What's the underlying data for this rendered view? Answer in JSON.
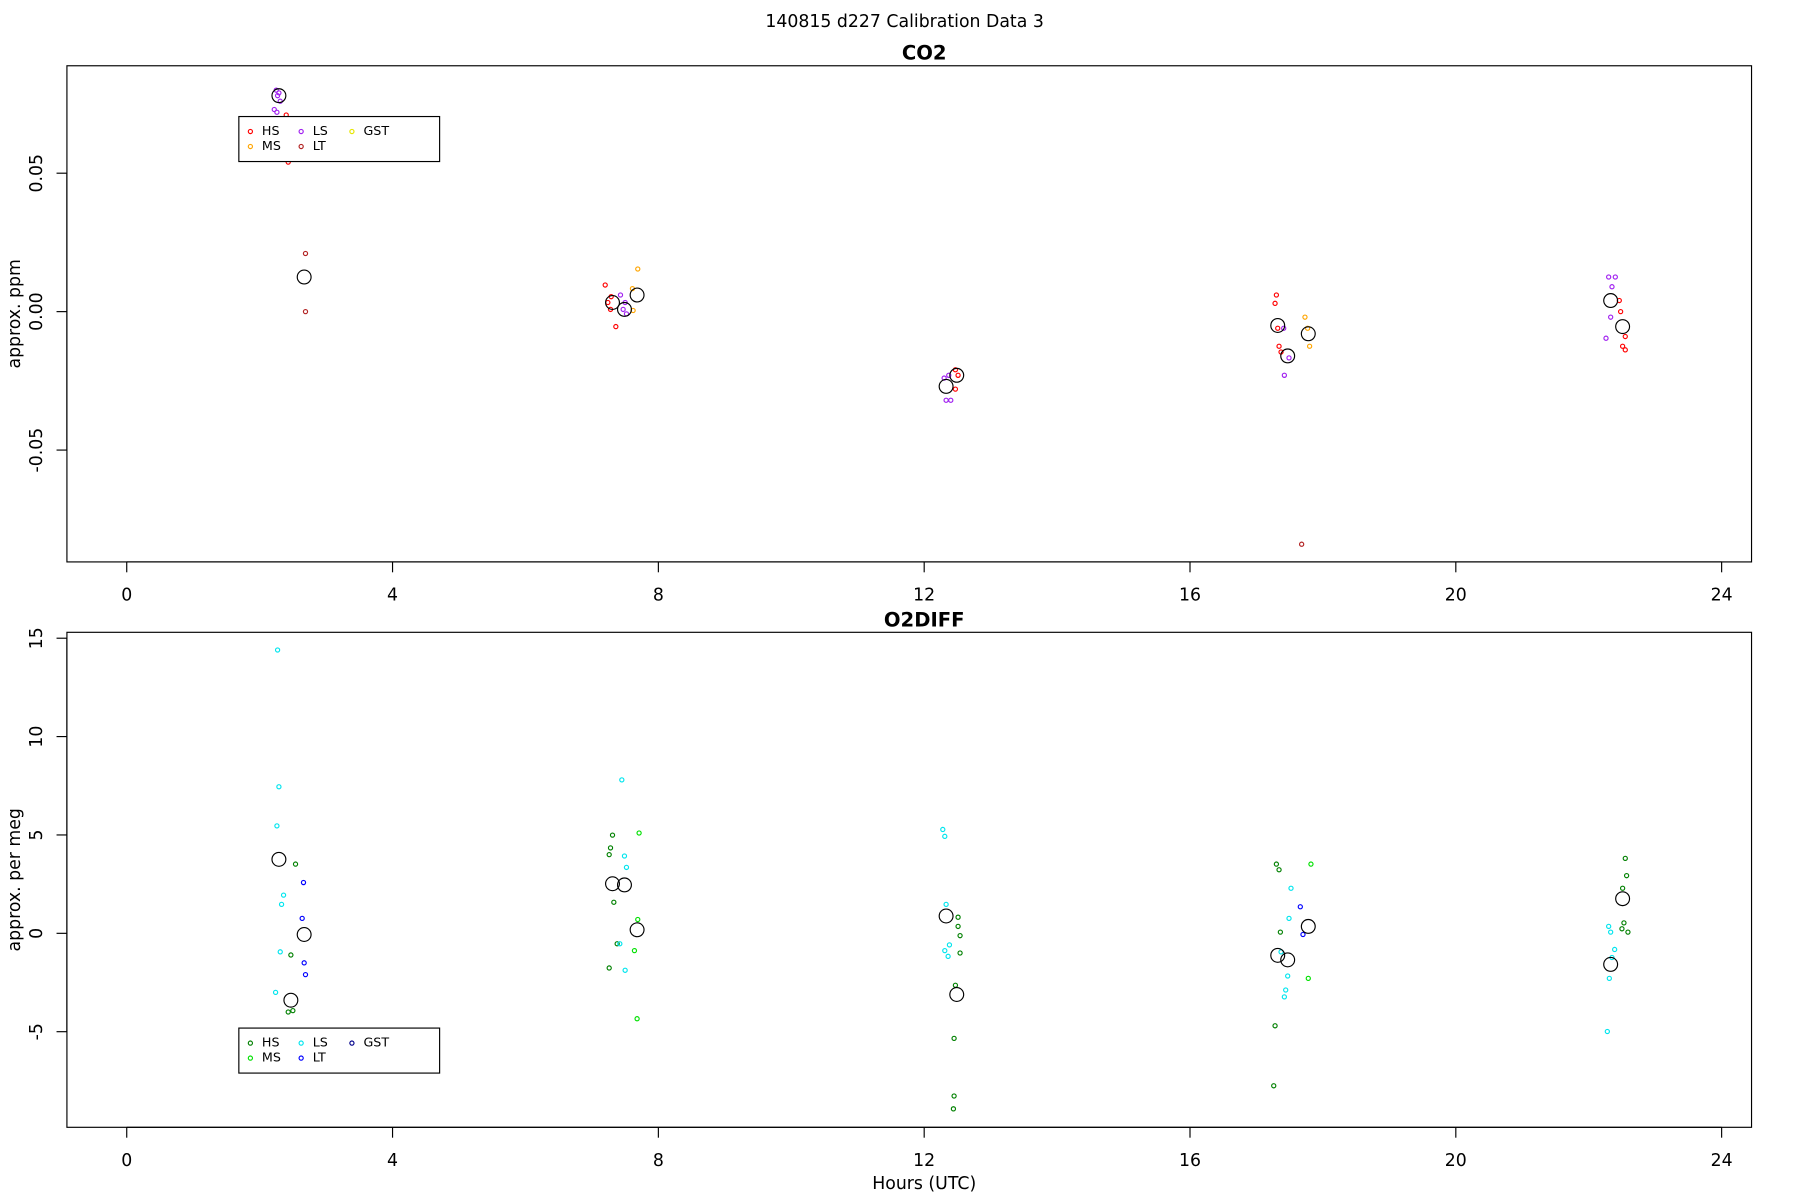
{
  "suptitle": "140815   d227   Calibration Data 3",
  "chart_data": [
    {
      "type": "scatter",
      "title": "CO2",
      "ylabel": "approx. ppm",
      "legend": "top left",
      "grid": false,
      "xlim": [
        -0.9,
        24.45
      ],
      "xticks": [
        0,
        4,
        8,
        12,
        16,
        20,
        24
      ],
      "ylim": [
        -0.0904,
        0.0888
      ],
      "yticks": [
        -0.05,
        {
          "value": 0,
          "label": "0.00"
        },
        0.05
      ],
      "series": [
        {
          "name": "HS",
          "color": "#ff0000",
          "x": [
            2.4,
            2.43,
            7.2,
            7.29,
            7.24,
            7.28,
            7.36,
            12.47,
            12.51,
            12.47,
            17.3,
            17.28,
            17.32,
            17.34,
            17.37,
            22.46,
            22.48,
            22.55,
            22.51,
            22.55
          ],
          "values": [
            0.071,
            0.054,
            0.0096,
            0.0054,
            0.0033,
            0.0008,
            -0.0054,
            -0.021,
            -0.023,
            -0.028,
            0.006,
            0.003,
            -0.006,
            -0.0125,
            -0.0146,
            0.004,
            0,
            -0.009,
            -0.0125,
            -0.0138
          ]
        },
        {
          "name": "MS",
          "color": "#ffa500",
          "x": [
            7.69,
            7.61,
            7.62,
            17.73,
            17.77,
            17.8
          ],
          "values": [
            0.0154,
            0.0083,
            0.0004,
            -0.002,
            -0.006,
            -0.0125
          ]
        },
        {
          "name": "LS",
          "color": "#a020f0",
          "x": [
            2.25,
            2.29,
            2.27,
            2.31,
            2.22,
            2.26,
            7.43,
            7.5,
            7.47,
            7.52,
            12.3,
            12.33,
            12.4,
            12.37,
            17.41,
            17.49,
            17.42,
            22.3,
            22.4,
            22.35,
            22.33,
            22.26
          ],
          "values": [
            0.08,
            0.079,
            0.078,
            0.076,
            0.073,
            0.072,
            0.006,
            0.0033,
            0.0008,
            -0.0008,
            -0.024,
            -0.032,
            -0.032,
            -0.023,
            -0.006,
            -0.0167,
            -0.023,
            0.0125,
            0.0125,
            0.009,
            -0.002,
            -0.0096
          ]
        },
        {
          "name": "LT",
          "color": "#b22222",
          "x": [
            2.69,
            2.69,
            17.68
          ],
          "values": [
            0.021,
            0.0,
            -0.084
          ]
        },
        {
          "name": "GST",
          "color": "#e6e600",
          "x": [],
          "values": []
        }
      ],
      "means": {
        "color": "#000000",
        "x": [
          2.29,
          2.67,
          7.31,
          7.49,
          7.68,
          12.33,
          12.49,
          17.32,
          17.47,
          17.78,
          22.33,
          22.51
        ],
        "values": [
          0.078,
          0.0125,
          0.0033,
          0.0008,
          0.006,
          -0.027,
          -0.023,
          -0.005,
          -0.016,
          -0.008,
          0.004,
          -0.0054
        ]
      }
    },
    {
      "type": "scatter",
      "title": "O2DIFF",
      "ylabel": "approx. per meg",
      "xlabel": "Hours (UTC)",
      "legend": "bottom left",
      "grid": false,
      "xlim": [
        -0.9,
        24.45
      ],
      "xticks": [
        0,
        4,
        8,
        12,
        16,
        20,
        24
      ],
      "ylim": [
        -9.86,
        15.3
      ],
      "yticks": [
        -5,
        0,
        5,
        10,
        15
      ],
      "series": [
        {
          "name": "HS",
          "color": "#008000",
          "x": [
            2.54,
            2.47,
            2.43,
            2.5,
            7.31,
            7.28,
            7.26,
            7.33,
            7.38,
            7.26,
            12.51,
            12.51,
            12.54,
            12.54,
            12.47,
            12.45,
            12.45,
            12.44,
            17.3,
            17.34,
            17.36,
            17.28,
            17.26,
            22.55,
            22.57,
            22.51,
            22.53,
            22.5,
            22.59
          ],
          "values": [
            3.52,
            -1.1,
            -4.0,
            -3.93,
            4.99,
            4.34,
            4.0,
            1.58,
            -0.53,
            -1.76,
            0.82,
            0.35,
            -0.12,
            -1.0,
            -2.64,
            -5.34,
            -8.27,
            -8.92,
            3.52,
            3.23,
            0.06,
            -4.7,
            -7.75,
            3.81,
            2.93,
            2.29,
            0.53,
            0.23,
            0.06
          ]
        },
        {
          "name": "MS",
          "color": "#00e000",
          "x": [
            7.71,
            7.69,
            7.64,
            7.68,
            17.82,
            17.78
          ],
          "values": [
            5.1,
            0.7,
            -0.88,
            -4.34,
            3.52,
            -2.29
          ]
        },
        {
          "name": "LS",
          "color": "#00e5ee",
          "x": [
            2.27,
            2.29,
            2.26,
            2.36,
            2.33,
            2.31,
            2.24,
            7.45,
            7.49,
            7.52,
            7.42,
            7.5,
            12.28,
            12.31,
            12.33,
            12.38,
            12.31,
            12.36,
            17.52,
            17.49,
            17.47,
            17.44,
            17.42,
            17.37,
            22.3,
            22.33,
            22.39,
            22.35,
            22.31,
            22.28
          ],
          "values": [
            14.4,
            7.45,
            5.46,
            1.94,
            1.47,
            -0.94,
            -3.0,
            7.8,
            3.93,
            3.35,
            -0.53,
            -1.88,
            5.28,
            4.93,
            1.47,
            -0.59,
            -0.88,
            -1.17,
            2.29,
            0.76,
            -2.17,
            -2.88,
            -3.23,
            -0.94,
            0.35,
            0.06,
            -0.82,
            -1.23,
            -2.29,
            -4.99
          ]
        },
        {
          "name": "LT",
          "color": "#0000ff",
          "x": [
            2.66,
            2.64,
            2.67,
            2.69,
            17.66,
            17.7
          ],
          "values": [
            2.58,
            0.76,
            -1.5,
            -2.1,
            1.35,
            -0.06
          ]
        },
        {
          "name": "GST",
          "color": "#00008b",
          "x": [],
          "values": []
        }
      ],
      "means": {
        "color": "#000000",
        "x": [
          2.29,
          2.67,
          2.47,
          7.31,
          7.49,
          7.68,
          12.33,
          12.49,
          17.32,
          17.47,
          17.78,
          22.33,
          22.51
        ],
        "values": [
          3.76,
          -0.06,
          -3.4,
          2.52,
          2.46,
          0.18,
          0.88,
          -3.11,
          -1.12,
          -1.35,
          0.35,
          -1.58,
          1.76
        ]
      }
    }
  ]
}
